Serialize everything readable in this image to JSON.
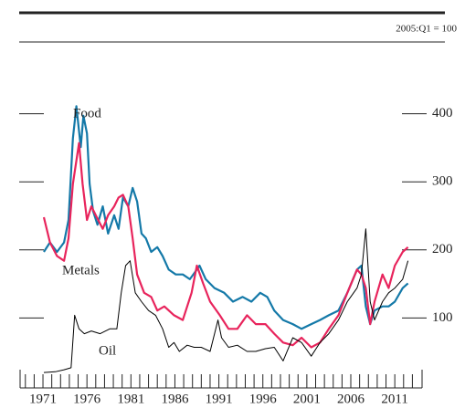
{
  "chart_data": {
    "type": "line",
    "annotation": "2005:Q1 = 100",
    "xlim": [
      1968.4,
      2014.1
    ],
    "xticks": [
      1971,
      1976,
      1981,
      1986,
      1991,
      1996,
      2001,
      2006,
      2011
    ],
    "xminorticks": [
      1969,
      1970,
      1971,
      1972,
      1973,
      1974,
      1975,
      1976,
      1977,
      1978,
      1979,
      1980,
      1981,
      1982,
      1983,
      1984,
      1985,
      1986,
      1987,
      1988,
      1989,
      1990,
      1991,
      1992,
      1993,
      1994,
      1995,
      1996,
      1997,
      1998,
      1999,
      2000,
      2001,
      2002,
      2003,
      2004,
      2005,
      2006,
      2007,
      2008,
      2009,
      2010,
      2011,
      2012,
      2013
    ],
    "ylim": [
      0,
      500
    ],
    "yticks": [
      100,
      200,
      300,
      400
    ],
    "grid": false,
    "series": [
      {
        "name": "Food",
        "color": "#1479a8",
        "x": [
          1971.1,
          1971.8,
          1972.6,
          1973.4,
          1973.9,
          1974.4,
          1974.8,
          1975.3,
          1975.6,
          1976.0,
          1976.3,
          1976.7,
          1977.2,
          1977.8,
          1978.4,
          1979.1,
          1979.6,
          1980.1,
          1980.7,
          1981.2,
          1981.7,
          1982.2,
          1982.7,
          1983.3,
          1984.0,
          1984.6,
          1985.3,
          1986.1,
          1986.9,
          1987.7,
          1988.5,
          1988.8,
          1989.5,
          1990.5,
          1991.6,
          1992.6,
          1993.7,
          1994.7,
          1995.7,
          1996.5,
          1997.3,
          1998.3,
          1999.4,
          2000.4,
          2001.5,
          2002.5,
          2003.5,
          2004.6,
          2005.6,
          2006.7,
          2007.2,
          2007.7,
          2008.2,
          2008.7,
          2009.6,
          2010.3,
          2011.0,
          2011.9,
          2012.5
        ],
        "values": [
          197,
          211,
          197,
          211,
          244,
          364,
          411,
          351,
          397,
          371,
          297,
          257,
          237,
          264,
          224,
          251,
          231,
          277,
          264,
          291,
          271,
          224,
          217,
          197,
          204,
          191,
          171,
          164,
          164,
          157,
          171,
          177,
          157,
          144,
          137,
          124,
          131,
          124,
          137,
          131,
          111,
          97,
          91,
          84,
          91,
          97,
          104,
          111,
          137,
          171,
          177,
          117,
          91,
          111,
          117,
          117,
          124,
          144,
          151
        ]
      },
      {
        "name": "Metals",
        "color": "#e8245c",
        "x": [
          1971.1,
          1971.8,
          1972.6,
          1973.4,
          1973.9,
          1974.4,
          1975.1,
          1975.5,
          1976.0,
          1976.5,
          1977.0,
          1977.8,
          1978.4,
          1979.1,
          1979.6,
          1980.1,
          1980.7,
          1981.2,
          1981.7,
          1982.5,
          1983.3,
          1984.0,
          1984.8,
          1985.9,
          1986.9,
          1987.9,
          1988.5,
          1989.2,
          1990.0,
          1991.1,
          1992.1,
          1993.1,
          1994.2,
          1995.2,
          1996.3,
          1997.3,
          1998.3,
          1999.4,
          2000.4,
          2001.5,
          2002.5,
          2003.5,
          2004.6,
          2005.6,
          2006.7,
          2007.2,
          2007.7,
          2008.2,
          2008.7,
          2009.6,
          2010.3,
          2011.0,
          2011.9,
          2012.5
        ],
        "values": [
          248,
          211,
          191,
          184,
          217,
          297,
          357,
          297,
          244,
          264,
          251,
          231,
          251,
          264,
          277,
          281,
          264,
          217,
          164,
          137,
          131,
          111,
          117,
          104,
          97,
          137,
          177,
          151,
          124,
          104,
          84,
          84,
          104,
          91,
          91,
          77,
          64,
          60,
          71,
          57,
          64,
          84,
          104,
          137,
          171,
          164,
          144,
          91,
          124,
          164,
          144,
          177,
          197,
          204
        ]
      },
      {
        "name": "Oil",
        "color": "#000000",
        "x": [
          1971.1,
          1972.4,
          1973.4,
          1974.2,
          1974.6,
          1975.1,
          1975.7,
          1976.5,
          1977.5,
          1978.6,
          1979.4,
          1979.9,
          1980.4,
          1980.9,
          1981.5,
          1982.2,
          1983.0,
          1983.8,
          1984.6,
          1985.3,
          1985.9,
          1986.5,
          1987.4,
          1988.2,
          1989.0,
          1990.0,
          1990.9,
          1991.3,
          1992.1,
          1993.1,
          1994.2,
          1995.2,
          1996.3,
          1997.3,
          1998.3,
          1999.4,
          2000.4,
          2001.5,
          2002.5,
          2003.5,
          2004.6,
          2005.6,
          2006.7,
          2007.2,
          2007.7,
          2008.2,
          2008.7,
          2009.6,
          2010.3,
          2011.0,
          2011.9,
          2012.5
        ],
        "values": [
          20,
          21,
          24,
          27,
          104,
          84,
          77,
          81,
          77,
          84,
          84,
          137,
          177,
          184,
          137,
          124,
          111,
          104,
          84,
          57,
          64,
          51,
          60,
          57,
          57,
          51,
          97,
          71,
          57,
          60,
          51,
          51,
          55,
          57,
          37,
          71,
          64,
          44,
          64,
          77,
          97,
          124,
          144,
          164,
          231,
          124,
          97,
          124,
          137,
          144,
          157,
          184
        ]
      }
    ]
  }
}
